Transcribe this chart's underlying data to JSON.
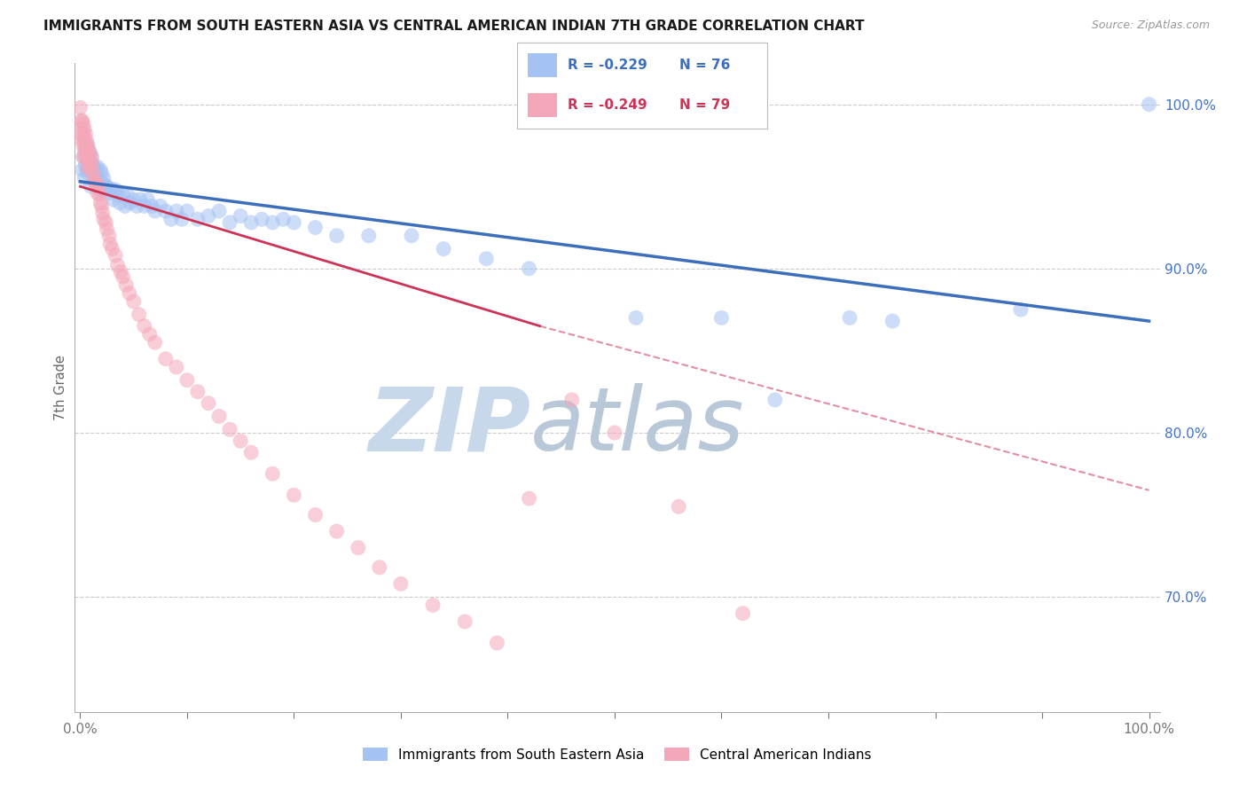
{
  "title": "IMMIGRANTS FROM SOUTH EASTERN ASIA VS CENTRAL AMERICAN INDIAN 7TH GRADE CORRELATION CHART",
  "source": "Source: ZipAtlas.com",
  "ylabel_left": "7th Grade",
  "legend_label_blue": "Immigrants from South Eastern Asia",
  "legend_label_pink": "Central American Indians",
  "legend_r_blue": "R = -0.229",
  "legend_r_pink": "R = -0.249",
  "legend_n_blue": "N = 76",
  "legend_n_pink": "N = 79",
  "blue_scatter_color": "#a4c2f4",
  "pink_scatter_color": "#f4a7b9",
  "blue_line_color": "#3d6ebb",
  "pink_line_color": "#cc3355",
  "watermark_zip": "ZIP",
  "watermark_atlas": "atlas",
  "watermark_color": "#c8d8eb",
  "grid_color": "#cccccc",
  "right_tick_color": "#4472c4",
  "ylim_low": 0.63,
  "ylim_high": 1.025,
  "xlim_low": -0.005,
  "xlim_high": 1.01,
  "trend_blue_x0": 0.0,
  "trend_blue_x1": 1.0,
  "trend_blue_y0": 0.953,
  "trend_blue_y1": 0.868,
  "trend_pink_solid_x0": 0.0,
  "trend_pink_solid_x1": 0.43,
  "trend_pink_solid_y0": 0.95,
  "trend_pink_solid_y1": 0.865,
  "trend_pink_dash_x0": 0.43,
  "trend_pink_dash_x1": 1.0,
  "trend_pink_dash_y0": 0.865,
  "trend_pink_dash_y1": 0.765,
  "blue_x": [
    0.002,
    0.003,
    0.004,
    0.005,
    0.005,
    0.006,
    0.007,
    0.008,
    0.008,
    0.009,
    0.01,
    0.01,
    0.011,
    0.012,
    0.013,
    0.014,
    0.015,
    0.015,
    0.016,
    0.017,
    0.018,
    0.019,
    0.02,
    0.021,
    0.022,
    0.023,
    0.024,
    0.025,
    0.026,
    0.028,
    0.03,
    0.031,
    0.033,
    0.035,
    0.037,
    0.04,
    0.042,
    0.044,
    0.047,
    0.05,
    0.053,
    0.056,
    0.06,
    0.063,
    0.067,
    0.07,
    0.075,
    0.08,
    0.085,
    0.09,
    0.095,
    0.1,
    0.11,
    0.12,
    0.13,
    0.14,
    0.15,
    0.16,
    0.17,
    0.18,
    0.19,
    0.2,
    0.22,
    0.24,
    0.27,
    0.31,
    0.34,
    0.38,
    0.42,
    0.52,
    0.6,
    0.65,
    0.72,
    0.76,
    0.88,
    1.0
  ],
  "blue_y": [
    0.96,
    0.968,
    0.955,
    0.972,
    0.963,
    0.96,
    0.975,
    0.965,
    0.958,
    0.971,
    0.96,
    0.95,
    0.968,
    0.963,
    0.958,
    0.96,
    0.96,
    0.952,
    0.962,
    0.955,
    0.948,
    0.96,
    0.958,
    0.952,
    0.955,
    0.948,
    0.95,
    0.95,
    0.946,
    0.948,
    0.948,
    0.942,
    0.948,
    0.945,
    0.94,
    0.945,
    0.938,
    0.945,
    0.94,
    0.942,
    0.938,
    0.942,
    0.938,
    0.942,
    0.938,
    0.935,
    0.938,
    0.935,
    0.93,
    0.935,
    0.93,
    0.935,
    0.93,
    0.932,
    0.935,
    0.928,
    0.932,
    0.928,
    0.93,
    0.928,
    0.93,
    0.928,
    0.925,
    0.92,
    0.92,
    0.92,
    0.912,
    0.906,
    0.9,
    0.87,
    0.87,
    0.82,
    0.87,
    0.868,
    0.875,
    1.0
  ],
  "pink_x": [
    0.0,
    0.001,
    0.001,
    0.002,
    0.002,
    0.002,
    0.003,
    0.003,
    0.003,
    0.003,
    0.004,
    0.004,
    0.004,
    0.005,
    0.005,
    0.005,
    0.006,
    0.006,
    0.007,
    0.007,
    0.007,
    0.008,
    0.008,
    0.009,
    0.009,
    0.01,
    0.01,
    0.011,
    0.012,
    0.013,
    0.014,
    0.015,
    0.016,
    0.017,
    0.018,
    0.019,
    0.02,
    0.021,
    0.022,
    0.024,
    0.025,
    0.027,
    0.028,
    0.03,
    0.033,
    0.035,
    0.038,
    0.04,
    0.043,
    0.046,
    0.05,
    0.055,
    0.06,
    0.065,
    0.07,
    0.08,
    0.09,
    0.1,
    0.11,
    0.12,
    0.13,
    0.14,
    0.15,
    0.16,
    0.18,
    0.2,
    0.22,
    0.24,
    0.26,
    0.28,
    0.3,
    0.33,
    0.36,
    0.39,
    0.42,
    0.46,
    0.5,
    0.56,
    0.62
  ],
  "pink_y": [
    0.998,
    0.99,
    0.982,
    0.99,
    0.985,
    0.978,
    0.988,
    0.981,
    0.975,
    0.968,
    0.985,
    0.978,
    0.972,
    0.982,
    0.975,
    0.968,
    0.978,
    0.972,
    0.975,
    0.968,
    0.962,
    0.972,
    0.965,
    0.97,
    0.963,
    0.968,
    0.96,
    0.964,
    0.958,
    0.954,
    0.952,
    0.952,
    0.946,
    0.95,
    0.945,
    0.94,
    0.938,
    0.934,
    0.93,
    0.928,
    0.924,
    0.92,
    0.915,
    0.912,
    0.908,
    0.902,
    0.898,
    0.895,
    0.89,
    0.885,
    0.88,
    0.872,
    0.865,
    0.86,
    0.855,
    0.845,
    0.84,
    0.832,
    0.825,
    0.818,
    0.81,
    0.802,
    0.795,
    0.788,
    0.775,
    0.762,
    0.75,
    0.74,
    0.73,
    0.718,
    0.708,
    0.695,
    0.685,
    0.672,
    0.76,
    0.82,
    0.8,
    0.755,
    0.69
  ]
}
